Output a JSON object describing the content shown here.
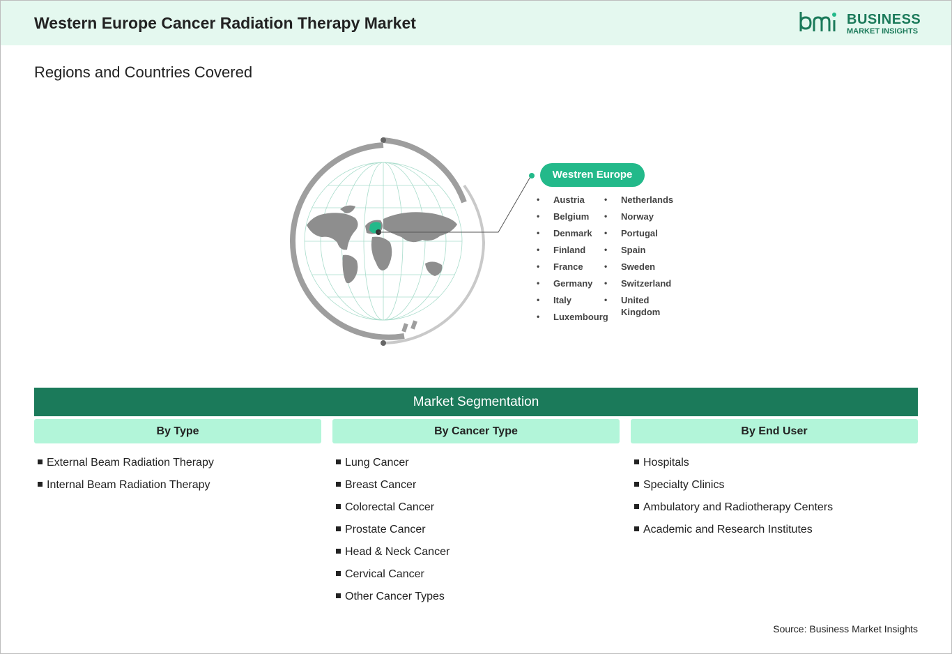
{
  "header": {
    "title": "Western Europe Cancer Radiation Therapy Market",
    "logo_line1": "BUSINESS",
    "logo_line2": "MARKET INSIGHTS",
    "brand_color": "#1b7a5a",
    "background": "#e4f8ef"
  },
  "regions": {
    "subtitle": "Regions and Countries Covered",
    "region_label": "Westren Europe",
    "accent": "#23b98a",
    "countries_col1": [
      "Austria",
      "Belgium",
      "Denmark",
      "Finland",
      "France",
      "Germany",
      "Italy",
      "Luxembourg"
    ],
    "countries_col2": [
      "Netherlands",
      "Norway",
      "Portugal",
      "Spain",
      "Sweden",
      "Switzerland",
      "United Kingdom"
    ]
  },
  "segmentation": {
    "title": "Market Segmentation",
    "bar_color": "#1b7a5a",
    "head_color": "#b2f5d9",
    "columns": [
      {
        "heading": "By Type",
        "items": [
          "External Beam Radiation Therapy",
          "Internal Beam Radiation Therapy"
        ]
      },
      {
        "heading": "By Cancer Type",
        "items": [
          "Lung Cancer",
          "Breast Cancer",
          "Colorectal Cancer",
          "Prostate Cancer",
          "Head & Neck Cancer",
          "Cervical Cancer",
          "Other Cancer Types"
        ]
      },
      {
        "heading": "By End User",
        "items": [
          "Hospitals",
          "Specialty Clinics",
          "Ambulatory and Radiotherapy Centers",
          "Academic and Research Institutes"
        ]
      }
    ]
  },
  "source": "Source: Business Market Insights"
}
